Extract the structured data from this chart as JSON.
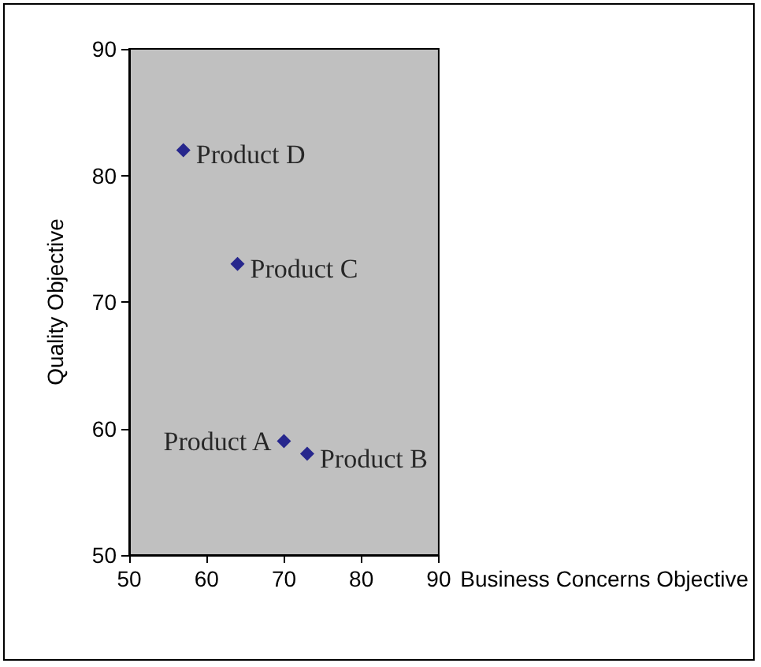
{
  "chart_data": {
    "type": "scatter",
    "xlabel": "Business Concerns Objective",
    "ylabel": "Quality Objective",
    "x": [
      70,
      73,
      64,
      57
    ],
    "values": [
      59,
      58,
      73,
      82
    ],
    "color": "#000080",
    "marker": "diamond",
    "grid": false,
    "xlim": [
      50,
      90
    ],
    "xticks": [
      50,
      60,
      70,
      80,
      90
    ],
    "ylim": [
      50,
      90
    ],
    "yticks": [
      50,
      60,
      70,
      80,
      90
    ],
    "annotations": [
      {
        "text": "Product A",
        "x": 70,
        "y": 59
      },
      {
        "text": "Product B",
        "x": 73,
        "y": 58
      },
      {
        "text": "Product C",
        "x": 64,
        "y": 73
      },
      {
        "text": "Product D",
        "x": 57,
        "y": 82
      }
    ]
  }
}
